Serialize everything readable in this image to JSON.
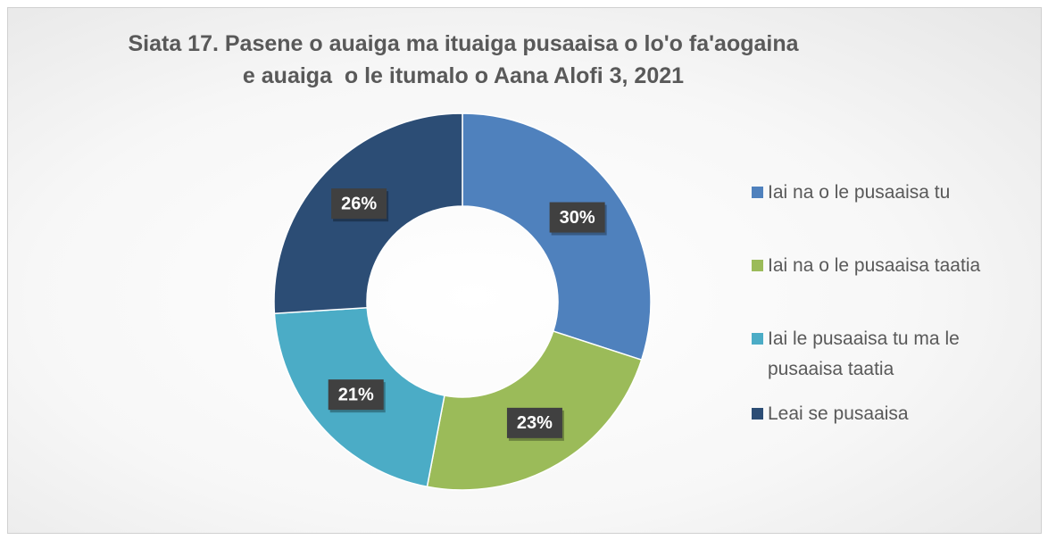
{
  "chart_data": {
    "type": "donut",
    "title": "Siata 17. Pasene o auaiga ma ituaiga pusaaisa o lo'o fa'aogaina e auaiga  o le itumalo o Aana Alofi 3, 2021",
    "categories": [
      "Iai na o le pusaaisa tu",
      "Iai na o le pusaaisa taatia",
      "Iai le pusaaisa tu ma le pusaaisa taatia",
      "Leai se pusaaisa"
    ],
    "values": [
      30,
      23,
      21,
      26
    ],
    "value_labels": [
      "30%",
      "23%",
      "21%",
      "26%"
    ],
    "colors": [
      "#4f81bd",
      "#9bbb59",
      "#4bacc6",
      "#2c4d75"
    ],
    "legend": "right"
  }
}
